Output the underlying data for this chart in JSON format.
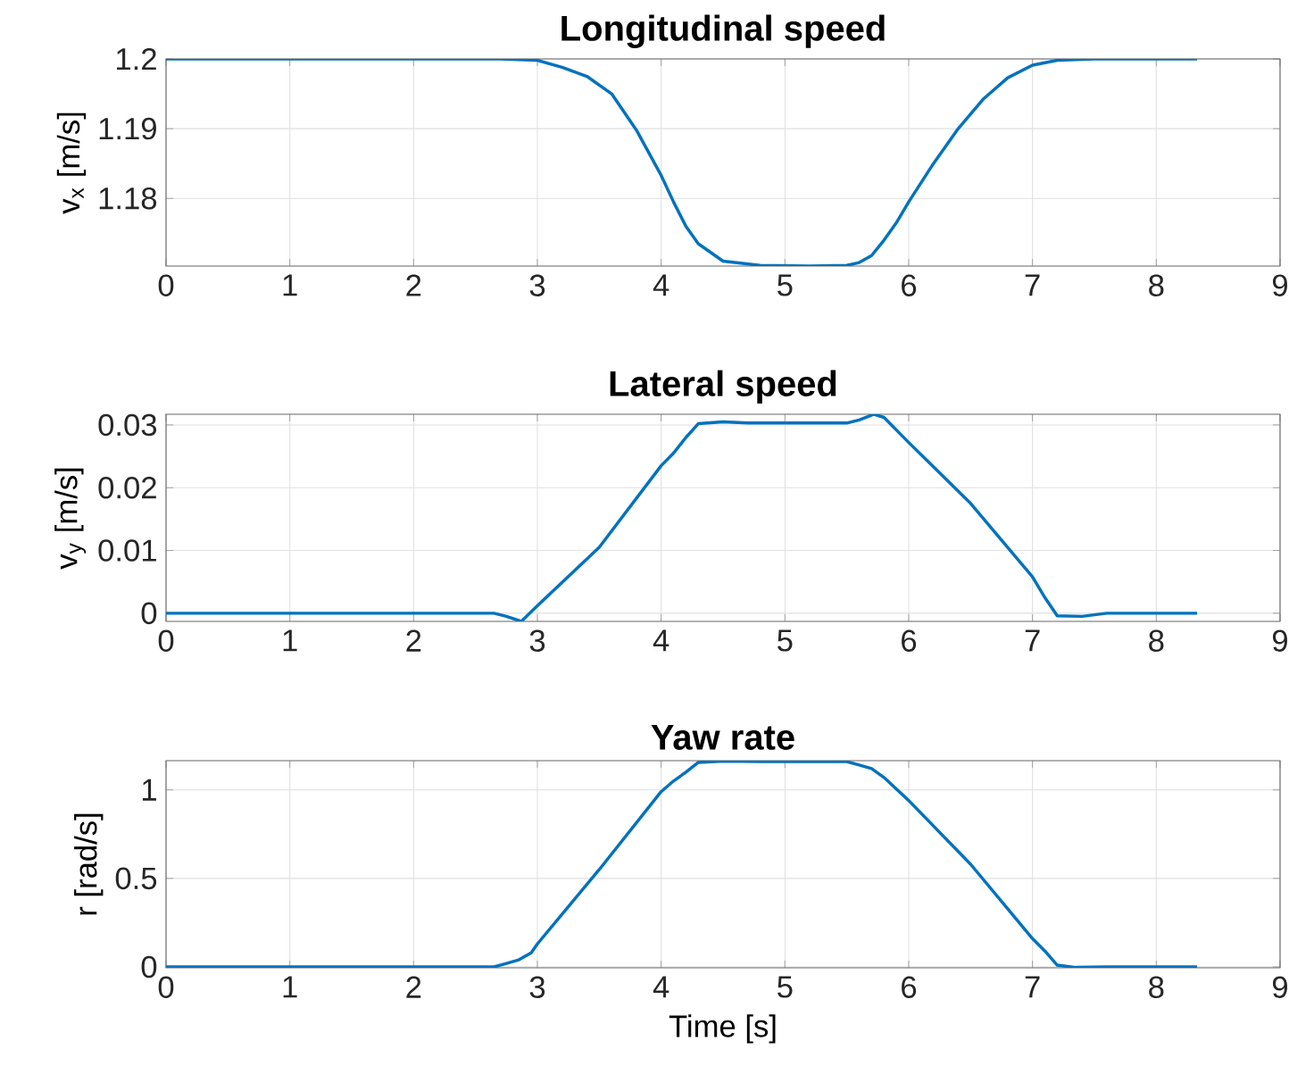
{
  "chart_data": [
    {
      "type": "line",
      "title": "Longitudinal speed",
      "ylabel": "v$_{x}$ [m/s]",
      "color": "#0072bd",
      "grid": true,
      "x": [
        0,
        2.7,
        3.0,
        3.2,
        3.4,
        3.6,
        3.8,
        4.0,
        4.1,
        4.2,
        4.3,
        4.5,
        4.8,
        5.2,
        5.5,
        5.6,
        5.7,
        5.8,
        5.9,
        6.0,
        6.2,
        6.4,
        6.6,
        6.8,
        7.0,
        7.2,
        7.5,
        8.33
      ],
      "values": [
        1.2,
        1.2,
        1.1998,
        1.1988,
        1.1975,
        1.195,
        1.1898,
        1.1833,
        1.1795,
        1.176,
        1.1735,
        1.171,
        1.1704,
        1.1703,
        1.1704,
        1.1708,
        1.1718,
        1.174,
        1.1765,
        1.1795,
        1.185,
        1.19,
        1.1942,
        1.1973,
        1.1991,
        1.1998,
        1.2,
        1.2
      ],
      "xlim": [
        0,
        9
      ],
      "xticks": [
        0,
        1,
        2,
        3,
        4,
        5,
        6,
        7,
        8,
        9
      ],
      "ylim": [
        1.1703,
        1.2
      ],
      "yticks": [
        1.18,
        1.19,
        1.2
      ]
    },
    {
      "type": "line",
      "title": "Lateral speed",
      "ylabel": "v$_{y}$ [m/s]",
      "color": "#0072bd",
      "grid": true,
      "x": [
        0,
        2.65,
        2.75,
        2.87,
        3.0,
        3.5,
        4.0,
        4.1,
        4.2,
        4.3,
        4.5,
        4.7,
        5.5,
        5.6,
        5.72,
        5.8,
        6.0,
        6.5,
        7.0,
        7.1,
        7.2,
        7.4,
        7.6,
        8.33
      ],
      "values": [
        0,
        0,
        -0.0005,
        -0.0013,
        0.0012,
        0.0105,
        0.0235,
        0.0255,
        0.028,
        0.0302,
        0.0305,
        0.0303,
        0.0303,
        0.0308,
        0.0317,
        0.0312,
        0.0272,
        0.0175,
        0.0058,
        0.0025,
        -0.0004,
        -0.0005,
        0,
        0
      ],
      "xlim": [
        0,
        9
      ],
      "xticks": [
        0,
        1,
        2,
        3,
        4,
        5,
        6,
        7,
        8,
        9
      ],
      "ylim": [
        -0.0013,
        0.0317
      ],
      "yticks": [
        0,
        0.01,
        0.02,
        0.03
      ]
    },
    {
      "type": "line",
      "title": "Yaw rate",
      "xlabel": "Time [s]",
      "ylabel": "r [rad/s]",
      "color": "#0072bd",
      "grid": true,
      "x": [
        0,
        2.65,
        2.75,
        2.85,
        2.95,
        3.0,
        3.5,
        4.0,
        4.1,
        4.2,
        4.3,
        4.5,
        4.8,
        5.5,
        5.6,
        5.7,
        5.8,
        6.0,
        6.5,
        7.0,
        7.1,
        7.2,
        7.35,
        7.6,
        8.33
      ],
      "values": [
        0,
        0,
        0.02,
        0.04,
        0.08,
        0.13,
        0.55,
        0.99,
        1.05,
        1.1,
        1.155,
        1.163,
        1.16,
        1.16,
        1.14,
        1.12,
        1.07,
        0.94,
        0.58,
        0.16,
        0.09,
        0.01,
        -0.003,
        0,
        0
      ],
      "xlim": [
        0,
        9
      ],
      "xticks": [
        0,
        1,
        2,
        3,
        4,
        5,
        6,
        7,
        8,
        9
      ],
      "ylim": [
        -0.005,
        1.165
      ],
      "yticks": [
        0,
        0.5,
        1
      ]
    }
  ]
}
